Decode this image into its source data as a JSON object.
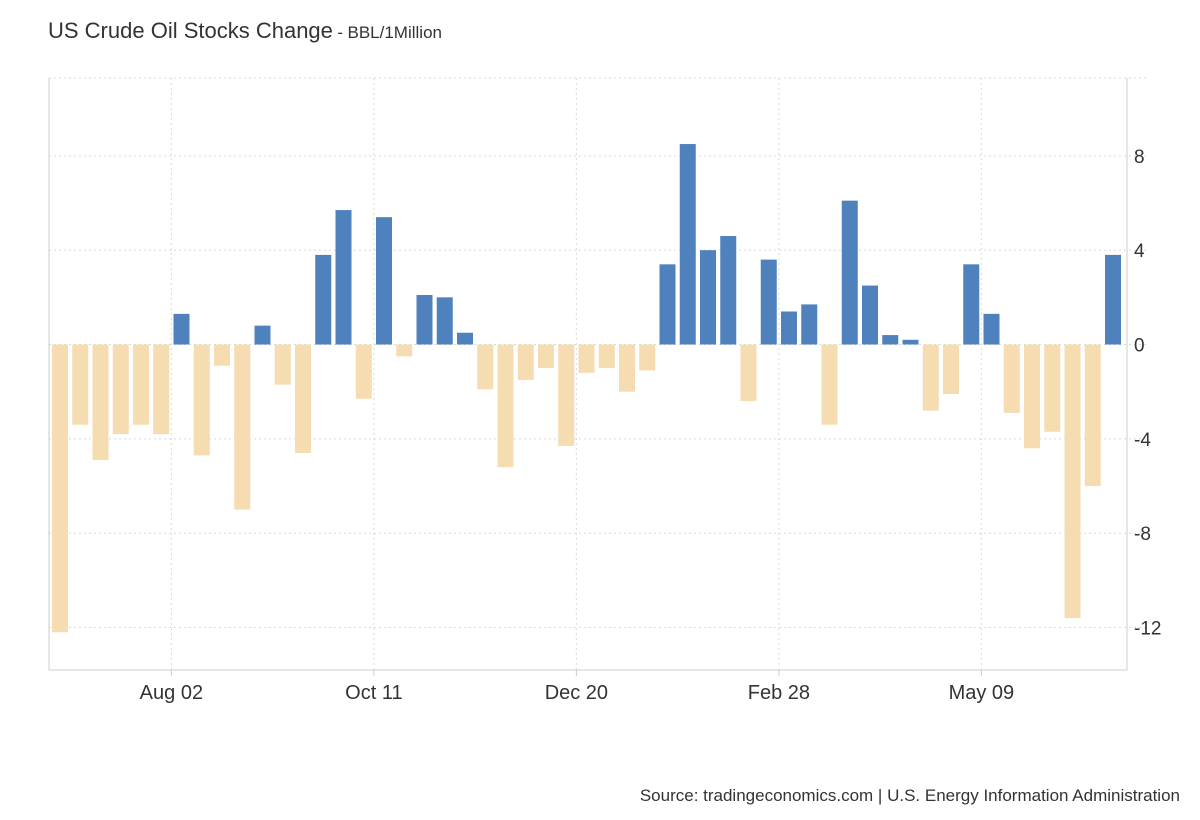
{
  "header": {
    "title": "US Crude Oil Stocks Change",
    "separator": "-",
    "unit": "BBL/1Million"
  },
  "footer": {
    "source": "Source: tradingeconomics.com | U.S. Energy Information Administration"
  },
  "colors": {
    "positive": "#4f81bd",
    "negative": "#f5dcb1",
    "grid": "#d9d9d9",
    "axis": "#cccccc",
    "text": "#333333"
  },
  "chart_data": {
    "type": "bar",
    "title": "US Crude Oil Stocks Change",
    "unit": "BBL/1Million",
    "x_tick_labels": [
      "Aug 02",
      "Oct 11",
      "Dec 20",
      "Feb 28",
      "May 09"
    ],
    "x_tick_bar_positions": [
      5.5,
      15.5,
      25.5,
      35.5,
      45.5
    ],
    "y_ticks": [
      8,
      4,
      0,
      -4,
      -8,
      -12
    ],
    "ylim": [
      -13.8,
      11.3
    ],
    "grid": true,
    "y_axis_side": "right",
    "values": [
      -12.2,
      -3.4,
      -4.9,
      -3.8,
      -3.4,
      -3.8,
      1.3,
      -4.7,
      -0.9,
      -7.0,
      0.8,
      -1.7,
      -4.6,
      3.8,
      5.7,
      -2.3,
      5.4,
      -0.5,
      2.1,
      2.0,
      0.5,
      -1.9,
      -5.2,
      -1.5,
      -1.0,
      -4.3,
      -1.2,
      -1.0,
      -2.0,
      -1.1,
      3.4,
      8.5,
      4.0,
      4.6,
      -2.4,
      3.6,
      1.4,
      1.7,
      -3.4,
      6.1,
      2.5,
      0.4,
      0.2,
      -2.8,
      -2.1,
      3.4,
      1.3,
      -2.9,
      -4.4,
      -3.7,
      -11.6,
      -6.0,
      3.8
    ]
  }
}
